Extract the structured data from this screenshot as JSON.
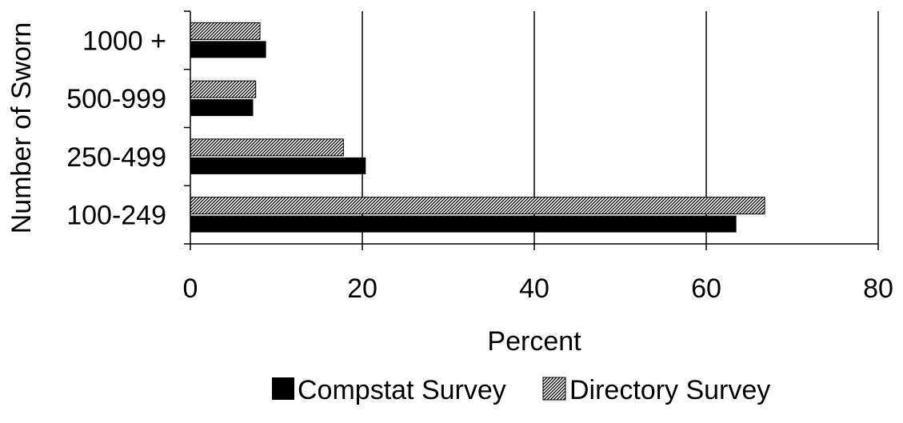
{
  "chart_data": {
    "type": "bar",
    "orientation": "horizontal",
    "categories": [
      "100-249",
      "250-499",
      "500-999",
      "1000 +"
    ],
    "series": [
      {
        "name": "Compstat Survey",
        "values": [
          63.5,
          20.4,
          7.3,
          8.8
        ],
        "color": "#000000",
        "pattern": "solid"
      },
      {
        "name": "Directory Survey",
        "values": [
          66.8,
          17.8,
          7.6,
          8.1
        ],
        "color": "#000000",
        "pattern": "diagonal-hatch"
      }
    ],
    "xlabel": "Percent",
    "ylabel": "Number of Sworn",
    "xlim": [
      0,
      80
    ],
    "xticks": [
      "0",
      "20",
      "40",
      "60",
      "80"
    ],
    "grid": "vertical",
    "legend": "bottom"
  }
}
